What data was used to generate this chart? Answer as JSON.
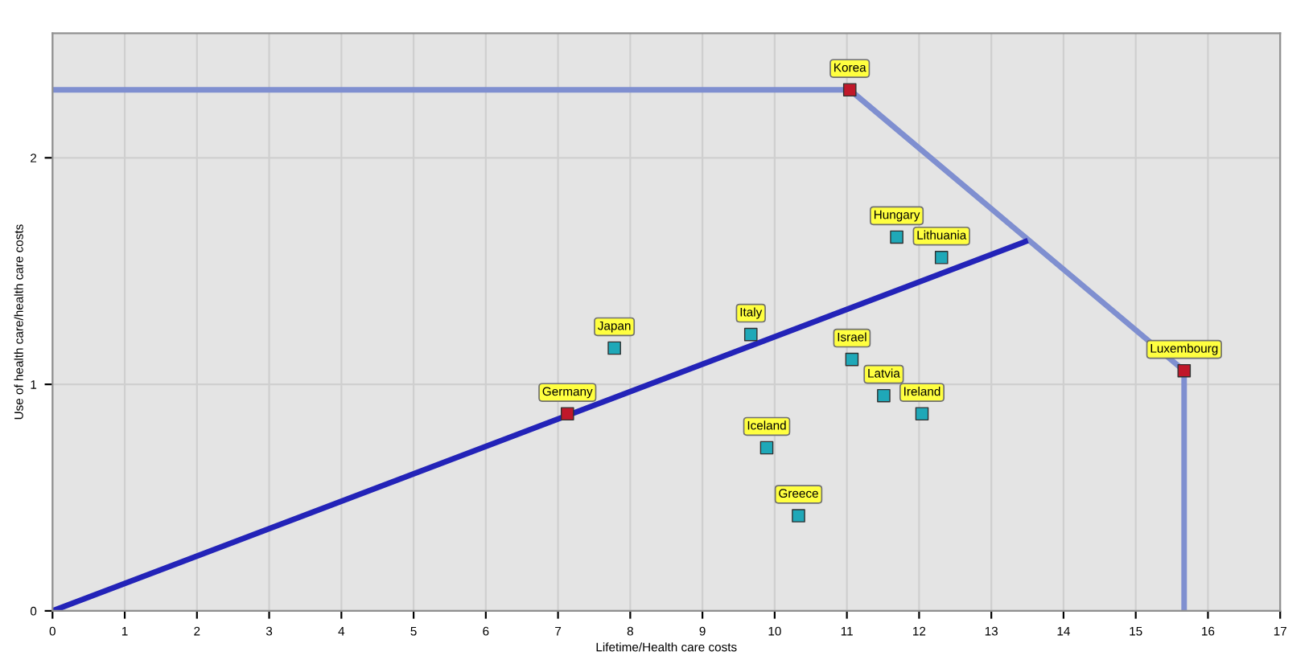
{
  "chart_data": {
    "type": "scatter",
    "xlabel": "Lifetime/Health care costs",
    "ylabel": "Use of health care/health care costs",
    "xlim": [
      0,
      17
    ],
    "ylim": [
      0,
      2.55
    ],
    "xticks": [
      0,
      1,
      2,
      3,
      4,
      5,
      6,
      7,
      8,
      9,
      10,
      11,
      12,
      13,
      14,
      15,
      16,
      17
    ],
    "yticks": [
      0,
      1,
      2
    ],
    "grid": true,
    "marker": "square",
    "series": [
      {
        "type": "line",
        "color": "#7f8fd0",
        "x": [
          0,
          11.04,
          15.67,
          15.67
        ],
        "values": [
          2.3,
          2.3,
          1.06,
          0
        ],
        "marker": "none"
      },
      {
        "type": "line",
        "color": "#2323b8",
        "x": [
          0,
          13.47
        ],
        "values": [
          0,
          1.63
        ],
        "marker": "none"
      },
      {
        "color": "#c0182a",
        "x": [
          11.04,
          15.67,
          7.13
        ],
        "values": [
          2.3,
          1.06,
          0.87
        ]
      },
      {
        "color": "#1fa8b8",
        "x": [
          7.78,
          9.67,
          11.69,
          12.31,
          11.07,
          11.51,
          12.04,
          9.89,
          10.33
        ],
        "values": [
          1.16,
          1.22,
          1.65,
          1.56,
          1.11,
          0.95,
          0.87,
          0.72,
          0.42
        ]
      }
    ],
    "annotations": [
      {
        "text": "Korea",
        "x": 11.04,
        "y": 2.3
      },
      {
        "text": "Luxembourg",
        "x": 15.67,
        "y": 1.06
      },
      {
        "text": "Germany",
        "x": 7.13,
        "y": 0.87
      },
      {
        "text": "Japan",
        "x": 7.78,
        "y": 1.16
      },
      {
        "text": "Italy",
        "x": 9.67,
        "y": 1.22
      },
      {
        "text": "Hungary",
        "x": 11.69,
        "y": 1.65
      },
      {
        "text": "Lithuania",
        "x": 12.31,
        "y": 1.56
      },
      {
        "text": "Israel",
        "x": 11.07,
        "y": 1.11
      },
      {
        "text": "Latvia",
        "x": 11.51,
        "y": 0.95
      },
      {
        "text": "Ireland",
        "x": 12.04,
        "y": 0.87
      },
      {
        "text": "Iceland",
        "x": 9.89,
        "y": 0.72
      },
      {
        "text": "Greece",
        "x": 10.33,
        "y": 0.42
      }
    ]
  }
}
